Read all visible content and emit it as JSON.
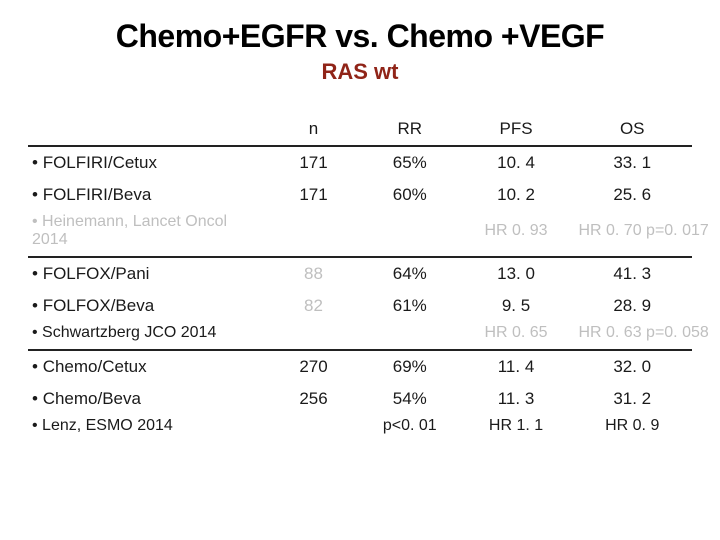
{
  "slide": {
    "title": "Chemo+EGFR vs. Chemo +VEGF",
    "subtitle": "RAS wt",
    "title_color": "#000000",
    "subtitle_color": "#902418",
    "background_color": "#ffffff"
  },
  "table": {
    "columns": {
      "label": "",
      "n": "n",
      "rr": "RR",
      "pfs": "PFS",
      "os": "OS"
    },
    "column_widths": {
      "label": "36%",
      "n": "14%",
      "rr": "15%",
      "pfs": "17%",
      "os": "18%"
    },
    "header_fontsize": 17,
    "cell_fontsize": 17,
    "rule_color": "#222222",
    "muted_color": "#bfbfbf",
    "sections": [
      {
        "rows": [
          {
            "label": "FOLFIRI/Cetux",
            "n": "171",
            "rr": "65%",
            "pfs": "10. 4",
            "os": "33. 1"
          },
          {
            "label": "FOLFIRI/Beva",
            "n": "171",
            "rr": "60%",
            "pfs": "10. 2",
            "os": "25. 6"
          }
        ],
        "citation": {
          "label": "Heinemann, Lancet Oncol 2014",
          "pfs": "HR 0. 93",
          "os": "HR 0. 70 p=0. 017",
          "muted": true
        }
      },
      {
        "rows": [
          {
            "label": "FOLFOX/Pani",
            "n": "88",
            "rr": "64%",
            "pfs": "13. 0",
            "os": "41. 3",
            "n_muted": true
          },
          {
            "label": "FOLFOX/Beva",
            "n": "82",
            "rr": "61%",
            "pfs": "9. 5",
            "os": "28. 9",
            "n_muted": true
          }
        ],
        "citation": {
          "label": "Schwartzberg  JCO 2014",
          "pfs": "HR 0. 65",
          "os": "HR 0. 63 p=0. 058",
          "muted": true,
          "label_dark": true
        }
      },
      {
        "rows": [
          {
            "label": "Chemo/Cetux",
            "n": "270",
            "rr": "69%",
            "pfs": "11. 4",
            "os": "32. 0"
          },
          {
            "label": "Chemo/Beva",
            "n": "256",
            "rr": "54%",
            "pfs": "11. 3",
            "os": "31. 2"
          }
        ],
        "citation": {
          "label": "Lenz, ESMO 2014",
          "rr": "p<0. 01",
          "pfs": "HR 1. 1",
          "os": "HR 0. 9",
          "muted": false,
          "label_dark": true
        }
      }
    ]
  }
}
